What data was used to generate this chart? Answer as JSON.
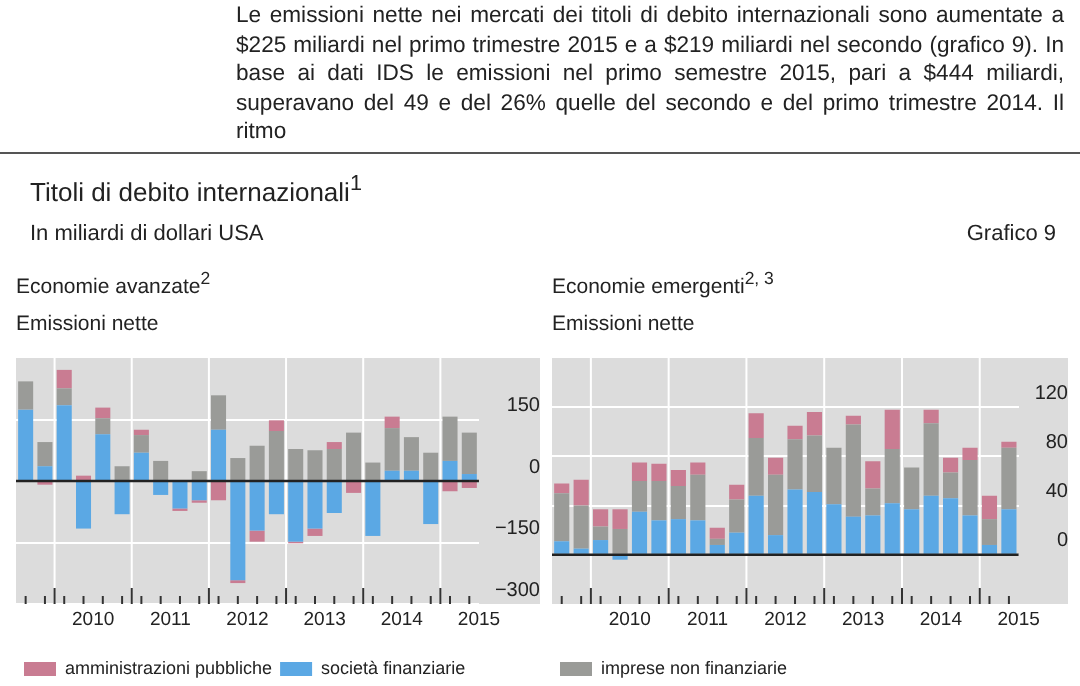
{
  "chart_data": [
    {
      "type": "bar",
      "title": "Economie avanzate$^{2}$",
      "subtitle": "Emissioni nette",
      "annotations": [
        "Le emissioni nette nei mercati dei titoli di debito internazionali sono aumentate a $225 miliardi nel primo trimestre 2015 e a $219 miliardi nel secondo (grafico 9). In base ai dati IDS le emissioni nel primo semestre 2015, pari a $444 miliardi, superavano del 49 e del 26% quelle del secondo e del primo trimestre 2014. Il ritmo",
        "Titoli di debito internazionali$^{1}$",
        "In miliardi di dollari USA",
        "Grafico 9"
      ],
      "categories": [
        null,
        null,
        null,
        "2010",
        null,
        null,
        null,
        "2011",
        null,
        null,
        null,
        "2012",
        null,
        null,
        null,
        "2013",
        null,
        null,
        null,
        "2014",
        null,
        null,
        null,
        "2015"
      ],
      "stacked": true,
      "ylim": [
        -300,
        300
      ],
      "yticks": [
        -300,
        -150,
        0,
        150
      ],
      "grid": true,
      "legend": "bottom",
      "series": [
        {
          "name": "società finanziarie",
          "color": "#5ba8e4",
          "values": [
            174,
            36,
            185,
            -116,
            114,
            -81,
            69,
            -34,
            -67,
            -47,
            125,
            -242,
            -121,
            -81,
            -148,
            -116,
            -78,
            0,
            -134,
            25,
            25,
            -105,
            49,
            17
          ]
        },
        {
          "color": "#9a9b98",
          "values": [
            69,
            59,
            41,
            0,
            39,
            36,
            43,
            49,
            null,
            24,
            84,
            56,
            86,
            122,
            78,
            75,
            78,
            118,
            45,
            104,
            82,
            69,
            108,
            101
          ]
        },
        {
          "name": "amministrazioni pubbliche",
          "color": "#c97c92",
          "values": [
            0,
            -9,
            45,
            13,
            26,
            0,
            13,
            0,
            -6,
            -6,
            -47,
            -7,
            -27,
            26,
            -4,
            -18,
            17,
            -29,
            0,
            28,
            0,
            0,
            -25,
            -17
          ]
        }
      ]
    },
    {
      "type": "bar",
      "title": "Economie emergenti$^{2, 3}$",
      "subtitle": "Emissioni nette",
      "categories": [
        null,
        null,
        null,
        "2010",
        null,
        null,
        null,
        "2011",
        null,
        null,
        null,
        "2012",
        null,
        null,
        null,
        "2013",
        null,
        null,
        null,
        "2014",
        null,
        null,
        null,
        "2015"
      ],
      "stacked": true,
      "ylim": [
        -40,
        160
      ],
      "yticks": [
        0,
        40,
        80,
        120
      ],
      "grid": true,
      "legend": "bottom",
      "series": [
        {
          "color": "#5ba8e4",
          "values": [
            11,
            5,
            12,
            -4,
            35,
            28,
            29,
            28,
            8,
            18,
            48,
            16,
            53,
            51,
            41,
            31,
            32,
            42,
            37,
            48,
            46,
            32,
            8,
            37
          ]
        },
        {
          "name": "imprese non finanziarie",
          "color": "#9a9b98",
          "values": [
            39,
            35,
            11,
            21,
            25,
            32,
            27,
            37,
            5,
            27,
            47,
            49,
            41,
            46,
            46,
            75,
            22,
            44,
            34,
            59,
            21,
            45,
            21,
            50
          ]
        },
        {
          "color": "#c97c92",
          "values": [
            8,
            21,
            14,
            16,
            15,
            14,
            13,
            10,
            9,
            12,
            20,
            14,
            11,
            19,
            0,
            7,
            22,
            32,
            0,
            11,
            12,
            10,
            19,
            5
          ]
        }
      ]
    }
  ]
}
